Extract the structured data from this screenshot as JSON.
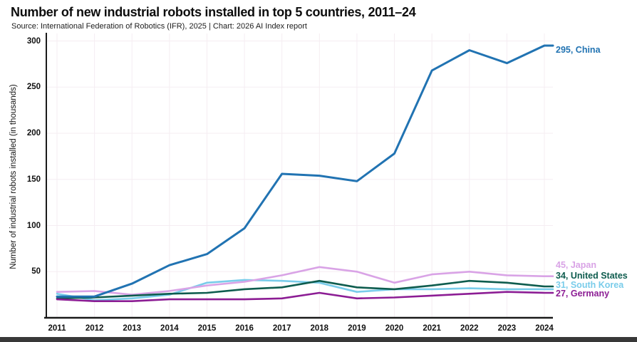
{
  "chart_data": {
    "type": "line",
    "title": "Number of new industrial robots installed in top 5 countries, 2011–24",
    "source": "Source: International Federation of Robotics (IFR), 2025 | Chart: 2026 AI Index report",
    "xlabel": "",
    "ylabel": "Number of industrial robots installed (in thousands)",
    "x": [
      "2011",
      "2012",
      "2013",
      "2014",
      "2015",
      "2016",
      "2017",
      "2018",
      "2019",
      "2020",
      "2021",
      "2022",
      "2023",
      "2024"
    ],
    "yticks": [
      50,
      100,
      150,
      200,
      250,
      300
    ],
    "ylim": [
      0,
      310
    ],
    "grid": true,
    "legend_position": "end-of-line labels at right",
    "axis_color": "#1a1a1a",
    "gridline_color": "#f5edf2",
    "series": [
      {
        "name": "South Korea",
        "color": "#79ccea",
        "end_label": "31, South Korea",
        "values": [
          26,
          19,
          21,
          25,
          38,
          41,
          40,
          38,
          28,
          31,
          31,
          32,
          31,
          31
        ]
      },
      {
        "name": "Japan",
        "color": "#d9a3e6",
        "end_label": "45, Japan",
        "values": [
          28,
          29,
          25,
          29,
          35,
          39,
          46,
          55,
          50,
          38,
          47,
          50,
          46,
          45
        ]
      },
      {
        "name": "United States",
        "color": "#0e5c4e",
        "end_label": "34, United States",
        "values": [
          21,
          22,
          24,
          26,
          27,
          31,
          33,
          40,
          33,
          31,
          35,
          40,
          38,
          34
        ]
      },
      {
        "name": "Germany",
        "color": "#8c1d94",
        "end_label": "27, Germany",
        "values": [
          20,
          18,
          18,
          20,
          20,
          20,
          21,
          27,
          21,
          22,
          24,
          26,
          28,
          27
        ]
      },
      {
        "name": "China",
        "color": "#2173b2",
        "end_label": "295, China",
        "values": [
          23,
          23,
          37,
          57,
          69,
          97,
          156,
          154,
          148,
          178,
          268,
          290,
          276,
          295
        ]
      }
    ]
  }
}
